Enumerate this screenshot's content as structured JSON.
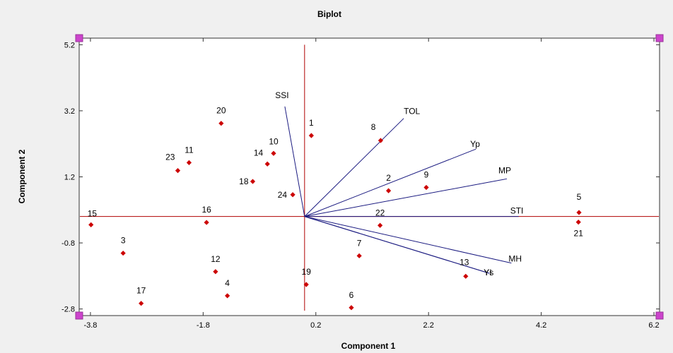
{
  "chart_data": {
    "type": "scatter",
    "title": "Biplot",
    "xlabel": "Component 1",
    "ylabel": "Component 2",
    "xlim": [
      -4.0,
      6.3
    ],
    "ylim": [
      -3.0,
      5.4
    ],
    "x_ticks": [
      -3.8,
      -1.8,
      0.2,
      2.2,
      4.2,
      6.2
    ],
    "x_tick_labels": [
      "-3.8",
      "-1.8",
      "0.2",
      "2.2",
      "4.2",
      "6.2"
    ],
    "y_ticks": [
      5.2,
      3.2,
      1.2,
      -0.8,
      -2.8
    ],
    "y_tick_labels": [
      "5.2",
      "3.2",
      "1.2",
      "-0.8",
      "-2.8"
    ],
    "grid": false,
    "colors": {
      "point": "#cc0000",
      "axis_line": "#b00000",
      "vector": "#1a1a80",
      "handle": "#cc44cc",
      "plot_bg": "#ffffff",
      "frame_bg": "#f0f0f0"
    },
    "points": [
      {
        "label": "1",
        "x": 0.12,
        "y": 2.45
      },
      {
        "label": "2",
        "x": 1.49,
        "y": 0.78
      },
      {
        "label": "3",
        "x": -3.22,
        "y": -1.11
      },
      {
        "label": "4",
        "x": -1.37,
        "y": -2.4
      },
      {
        "label": "5",
        "x": 4.87,
        "y": 0.12
      },
      {
        "label": "6",
        "x": 0.83,
        "y": -2.76
      },
      {
        "label": "7",
        "x": 0.97,
        "y": -1.19
      },
      {
        "label": "8",
        "x": 1.35,
        "y": 2.3
      },
      {
        "label": "9",
        "x": 2.16,
        "y": 0.88
      },
      {
        "label": "10",
        "x": -0.55,
        "y": 1.91
      },
      {
        "label": "11",
        "x": -2.05,
        "y": 1.63
      },
      {
        "label": "12",
        "x": -1.58,
        "y": -1.67
      },
      {
        "label": "13",
        "x": 2.86,
        "y": -1.81
      },
      {
        "label": "14",
        "x": -0.66,
        "y": 1.59
      },
      {
        "label": "15",
        "x": -3.79,
        "y": -0.25
      },
      {
        "label": "16",
        "x": -1.74,
        "y": -0.18
      },
      {
        "label": "17",
        "x": -2.9,
        "y": -2.63
      },
      {
        "label": "18",
        "x": -0.92,
        "y": 1.06
      },
      {
        "label": "19",
        "x": 0.03,
        "y": -2.06
      },
      {
        "label": "20",
        "x": -1.48,
        "y": 2.82
      },
      {
        "label": "21",
        "x": 4.86,
        "y": -0.17
      },
      {
        "label": "22",
        "x": 1.34,
        "y": -0.27
      },
      {
        "label": "23",
        "x": -2.25,
        "y": 1.39
      },
      {
        "label": "24",
        "x": -0.21,
        "y": 0.66
      }
    ],
    "vectors": [
      {
        "label": "SSI",
        "x": -0.35,
        "y": 3.33
      },
      {
        "label": "TOL",
        "x": 1.76,
        "y": 2.97
      },
      {
        "label": "Yp",
        "x": 3.04,
        "y": 2.04
      },
      {
        "label": "MP",
        "x": 3.59,
        "y": 1.14
      },
      {
        "label": "STI",
        "x": 3.8,
        "y": 0.0
      },
      {
        "label": "MH",
        "x": 3.67,
        "y": -1.41
      },
      {
        "label": "YI",
        "x": 3.28,
        "y": -1.72
      },
      {
        "label": "Ys",
        "x": 3.28,
        "y": -1.72
      }
    ]
  }
}
